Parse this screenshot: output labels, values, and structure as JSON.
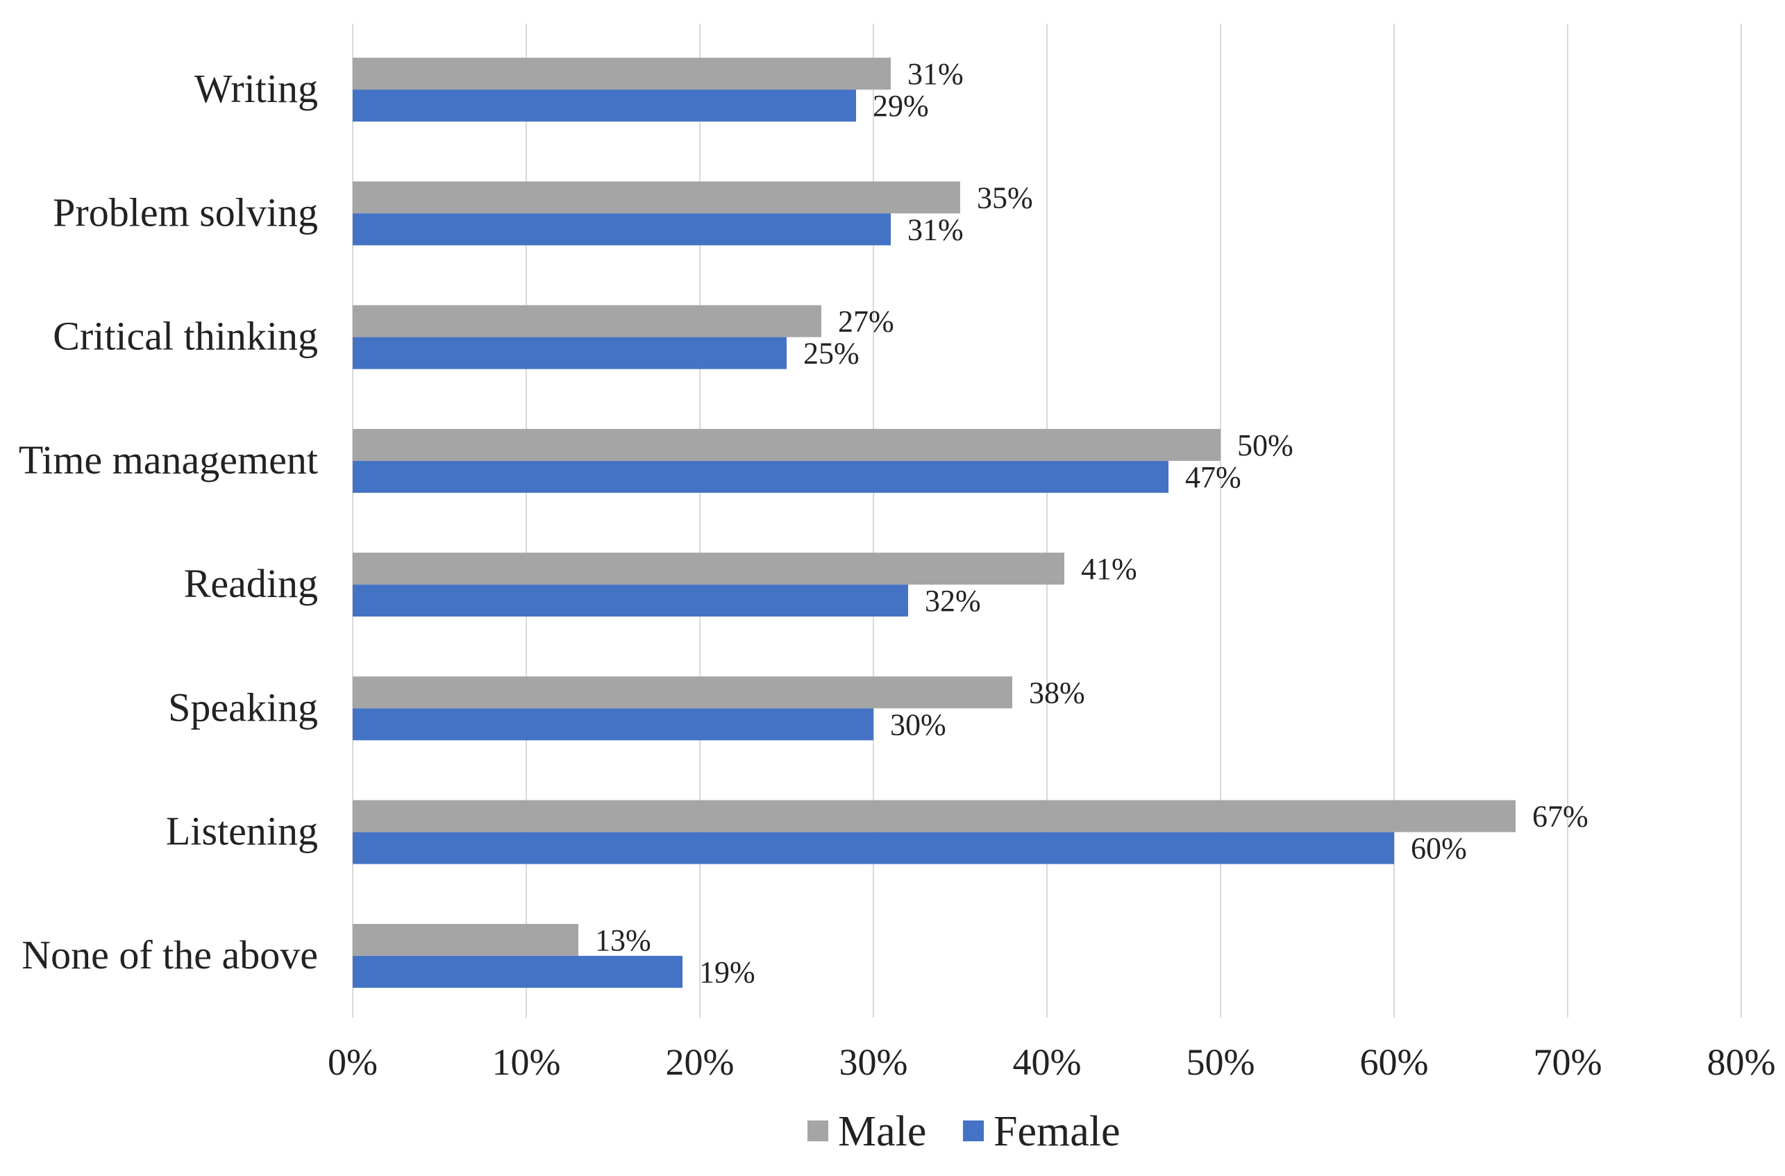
{
  "chart_data": {
    "type": "bar",
    "orientation": "horizontal",
    "title": "",
    "xlabel": "",
    "ylabel": "",
    "xlim": [
      0,
      80
    ],
    "x_ticks": [
      0,
      10,
      20,
      30,
      40,
      50,
      60,
      70,
      80
    ],
    "x_tick_labels": [
      "0%",
      "10%",
      "20%",
      "30%",
      "40%",
      "50%",
      "60%",
      "70%",
      "80%"
    ],
    "grid": "vertical",
    "legend_position": "bottom",
    "categories": [
      "Writing",
      "Problem solving",
      "Critical thinking",
      "Time management",
      "Reading",
      "Speaking",
      "Listening",
      "None of the above"
    ],
    "series": [
      {
        "name": "Male",
        "color": "#a5a5a5",
        "values": [
          31,
          35,
          27,
          50,
          41,
          38,
          67,
          13
        ],
        "labels": [
          "31%",
          "35%",
          "27%",
          "50%",
          "41%",
          "38%",
          "67%",
          "13%"
        ]
      },
      {
        "name": "Female",
        "color": "#4472c4",
        "values": [
          29,
          31,
          25,
          47,
          32,
          30,
          60,
          19
        ],
        "labels": [
          "29%",
          "31%",
          "25%",
          "47%",
          "32%",
          "30%",
          "60%",
          "19%"
        ]
      }
    ]
  }
}
